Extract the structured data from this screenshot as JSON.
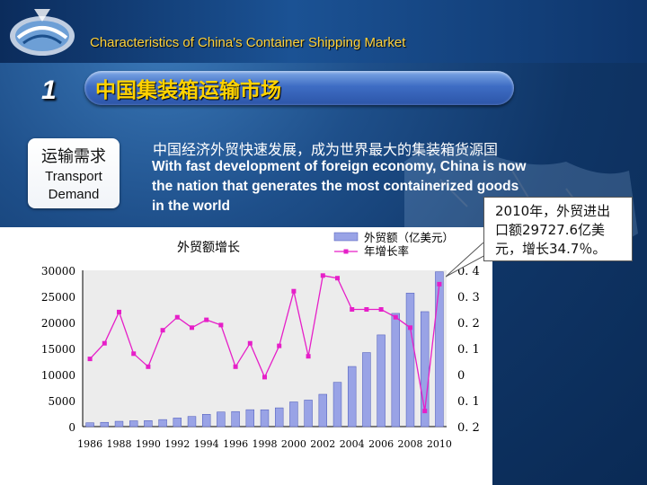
{
  "header": {
    "text": "Characteristics of China's Container Shipping Market"
  },
  "section": {
    "number": "1",
    "title": "中国集装箱运输市场"
  },
  "sidebar": {
    "cn_label": "运输需求",
    "en_label_line1": "Transport",
    "en_label_line2": "Demand"
  },
  "body": {
    "cn_text": "中国经济外贸快速发展，成为世界最大的集装箱货源国",
    "en_lines": [
      "With fast development of foreign economy, China is now",
      "the nation that generates the most containerized goods",
      "in the world"
    ]
  },
  "callout": {
    "lines": [
      "2010年，外贸进出",
      "口额29727.6亿美",
      "元，增长34.7％。"
    ]
  },
  "colors": {
    "bar": "#99a3e6",
    "line": "#e61fc8",
    "title_yellow": "#ffd200",
    "header_yellow": "#ffd23a"
  },
  "chart_data": {
    "type": "bar",
    "title": "外贸额增长",
    "legend": [
      "外贸额（亿美元）",
      "年增长率"
    ],
    "legend_position": "top-right",
    "x": [
      1986,
      1987,
      1988,
      1989,
      1990,
      1991,
      1992,
      1993,
      1994,
      1995,
      1996,
      1997,
      1998,
      1999,
      2000,
      2001,
      2002,
      2003,
      2004,
      2005,
      2006,
      2007,
      2008,
      2009,
      2010
    ],
    "x_tick_labels": [
      "1986",
      "1988",
      "1990",
      "1992",
      "1994",
      "1996",
      "1998",
      "2000",
      "2002",
      "2004",
      "2006",
      "2008",
      "2010"
    ],
    "series": [
      {
        "name": "外贸额（亿美元）",
        "type": "bar",
        "axis": "left",
        "values": [
          738,
          827,
          1028,
          1117,
          1154,
          1357,
          1656,
          1957,
          2366,
          2809,
          2899,
          3252,
          3239,
          3606,
          4743,
          5097,
          6208,
          8510,
          11546,
          14219,
          17604,
          21737,
          25633,
          22075,
          29728
        ]
      },
      {
        "name": "年增长率",
        "type": "line",
        "axis": "right",
        "values": [
          0.06,
          0.12,
          0.24,
          0.08,
          0.03,
          0.17,
          0.22,
          0.18,
          0.21,
          0.19,
          0.03,
          0.12,
          -0.01,
          0.11,
          0.32,
          0.07,
          0.38,
          0.37,
          0.25,
          0.25,
          0.25,
          0.22,
          0.18,
          -0.14,
          0.347
        ]
      }
    ],
    "y_left": {
      "min": 0,
      "max": 30000,
      "ticks": [
        "0",
        "5000",
        "10000",
        "15000",
        "20000",
        "25000",
        "30000"
      ]
    },
    "y_right": {
      "min": -0.2,
      "max": 0.4,
      "ticks": [
        "0. 2",
        "0. 1",
        "0",
        "0. 1",
        "0. 2",
        "0. 3",
        "0. 4"
      ]
    },
    "grid": false
  }
}
